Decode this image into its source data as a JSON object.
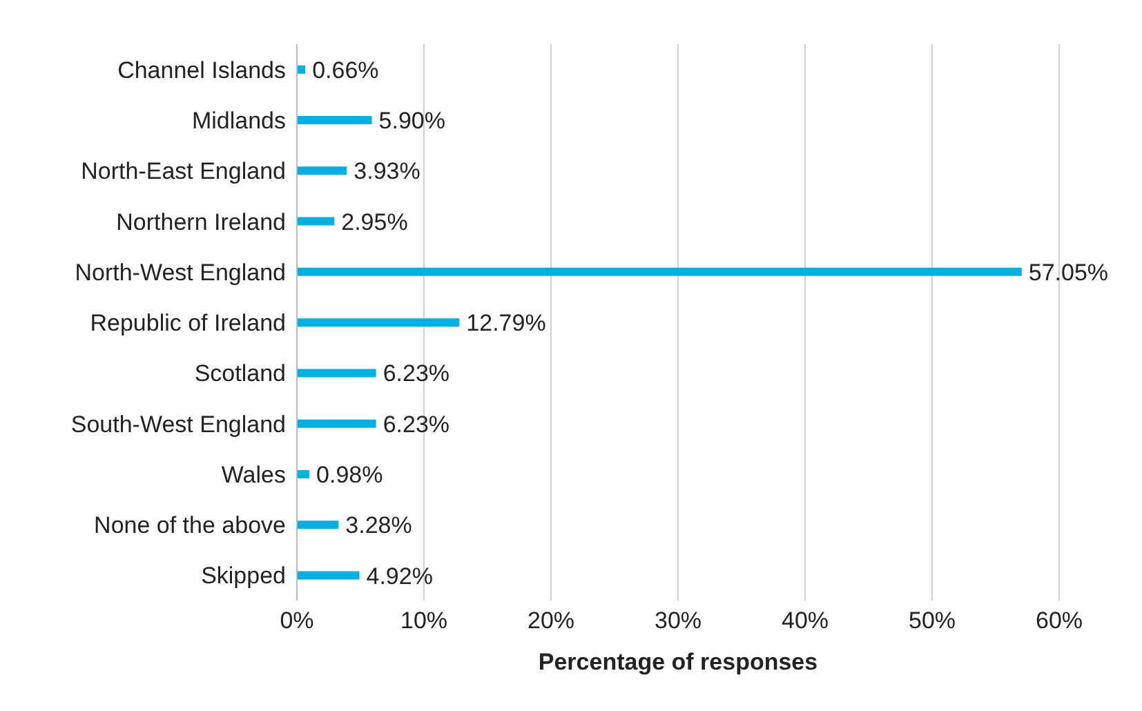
{
  "chart_data": {
    "type": "bar",
    "orientation": "horizontal",
    "xlabel": "Percentage of responses",
    "categories": [
      "Channel Islands",
      "Midlands",
      "North-East England",
      "Northern Ireland",
      "North-West England",
      "Republic of Ireland",
      "Scotland",
      "South-West England",
      "Wales",
      "None of the above",
      "Skipped"
    ],
    "values": [
      0.66,
      5.9,
      3.93,
      2.95,
      57.05,
      12.79,
      6.23,
      6.23,
      0.98,
      3.28,
      4.92
    ],
    "value_labels": [
      "0.66%",
      "5.90%",
      "3.93%",
      "2.95%",
      "57.05%",
      "12.79%",
      "6.23%",
      "6.23%",
      "0.98%",
      "3.28%",
      "4.92%"
    ],
    "color": "#00b0e0",
    "xlim": [
      0,
      60
    ],
    "xticks": [
      {
        "value": 0,
        "label": "0%"
      },
      {
        "value": 10,
        "label": "10%"
      },
      {
        "value": 20,
        "label": "20%"
      },
      {
        "value": 30,
        "label": "30%"
      },
      {
        "value": 40,
        "label": "40%"
      },
      {
        "value": 50,
        "label": "50%"
      },
      {
        "value": 60,
        "label": "60%"
      }
    ],
    "grid": "x",
    "legend": false
  }
}
